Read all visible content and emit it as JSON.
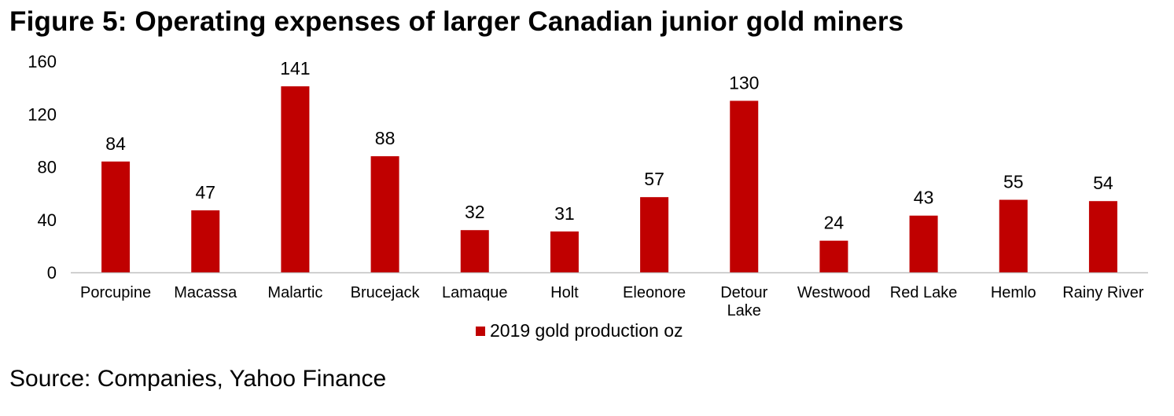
{
  "figure": {
    "title": "Figure 5: Operating expenses of larger Canadian junior gold miners",
    "source": "Source: Companies, Yahoo Finance"
  },
  "colors": {
    "bar": "#c00000",
    "axis": "#bfbfbf"
  },
  "chart_data": {
    "type": "bar",
    "title": "Figure 5: Operating expenses of larger Canadian junior gold miners",
    "xlabel": "",
    "ylabel": "",
    "ylim": [
      0,
      160
    ],
    "yticks": [
      "0",
      "40",
      "80",
      "120",
      "160"
    ],
    "grid": false,
    "legend_position": "bottom",
    "categories": [
      [
        "Porcupine"
      ],
      [
        "Macassa"
      ],
      [
        "Malartic"
      ],
      [
        "Brucejack"
      ],
      [
        "Lamaque"
      ],
      [
        "Holt"
      ],
      [
        "Eleonore"
      ],
      [
        "Detour",
        "Lake"
      ],
      [
        "Westwood"
      ],
      [
        "Red Lake"
      ],
      [
        "Hemlo"
      ],
      [
        "Rainy River"
      ]
    ],
    "series": [
      {
        "name": "2019 gold production oz",
        "values": [
          84,
          47,
          141,
          88,
          32,
          31,
          57,
          130,
          24,
          43,
          55,
          54
        ]
      }
    ]
  }
}
